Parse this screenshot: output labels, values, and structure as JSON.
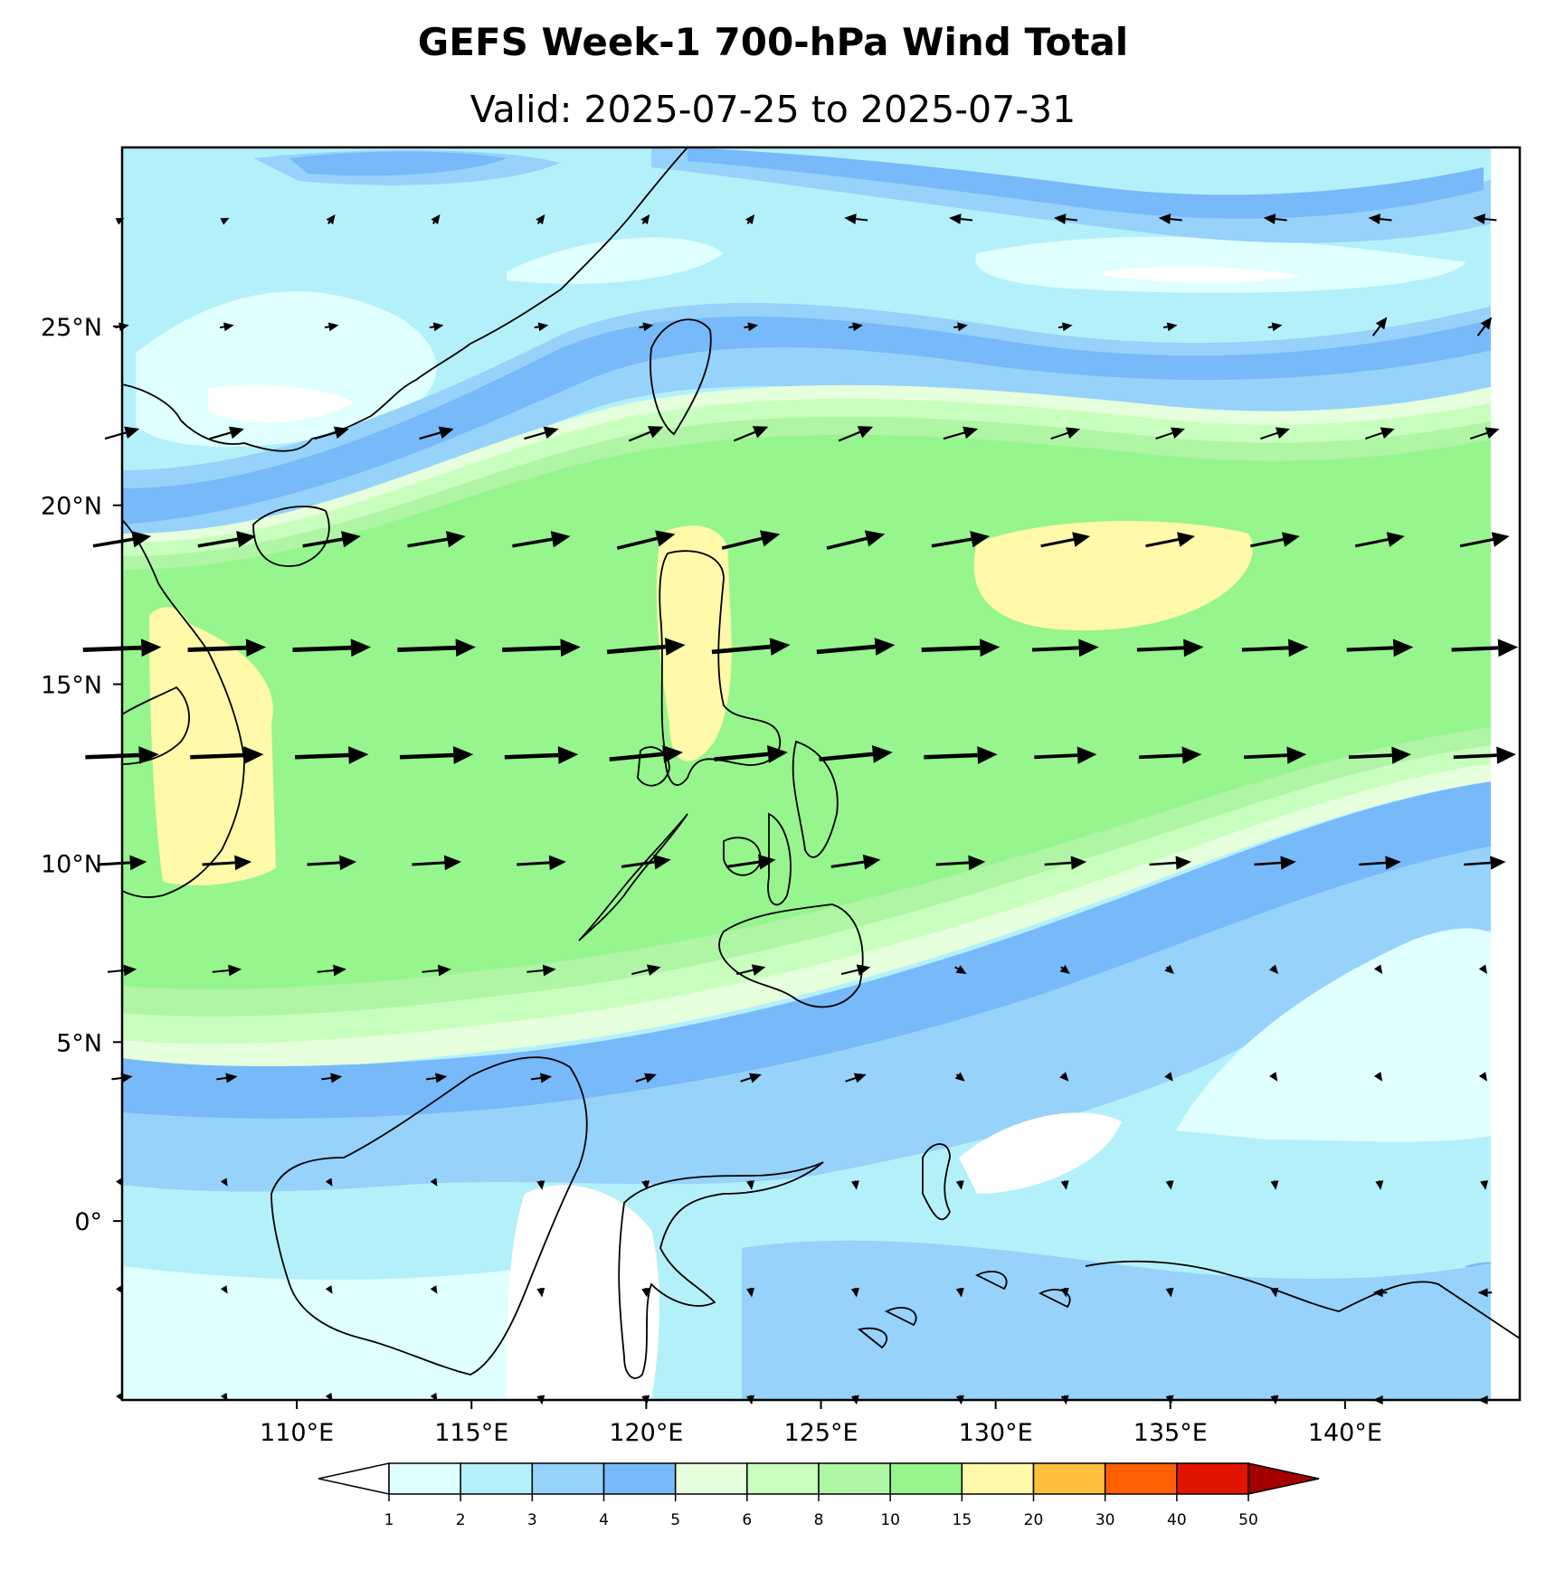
{
  "title": "GEFS Week-1 700-hPa Wind Total",
  "subtitle": "Valid: 2025-07-25 to 2025-07-31",
  "map": {
    "lon_range": [
      105.0,
      145.0
    ],
    "lat_range": [
      -5.0,
      30.0
    ],
    "lon_ticks": [
      {
        "value": 110,
        "label": "110°E"
      },
      {
        "value": 115,
        "label": "115°E"
      },
      {
        "value": 120,
        "label": "120°E"
      },
      {
        "value": 125,
        "label": "125°E"
      },
      {
        "value": 130,
        "label": "130°E"
      },
      {
        "value": 135,
        "label": "135°E"
      },
      {
        "value": 140,
        "label": "140°E"
      }
    ],
    "lat_ticks": [
      {
        "value": 0,
        "label": "0°"
      },
      {
        "value": 5,
        "label": "5°N"
      },
      {
        "value": 10,
        "label": "10°N"
      },
      {
        "value": 15,
        "label": "15°N"
      },
      {
        "value": 20,
        "label": "20°N"
      },
      {
        "value": 25,
        "label": "25°N"
      }
    ],
    "regions": [
      "Philippines",
      "Taiwan",
      "Hainan",
      "Borneo",
      "Sulawesi",
      "Halmahera",
      "New Guinea",
      "Vietnam"
    ]
  },
  "colorbar": {
    "levels": [
      "1",
      "2",
      "3",
      "4",
      "5",
      "6",
      "8",
      "10",
      "15",
      "20",
      "30",
      "40",
      "50"
    ],
    "colors": [
      "#e0ffff",
      "#b4f0fa",
      "#96d2fa",
      "#78b9fa",
      "#e6ffdc",
      "#c8ffbe",
      "#aff5a5",
      "#96f58c",
      "#fffaaa",
      "#ffc03c",
      "#ff6000",
      "#e11400",
      "#a50000"
    ],
    "under_color": "#ffffff",
    "over_color": "#a50000"
  },
  "colors": {
    "speed_1_2": "#e0ffff",
    "speed_2_3": "#b4f0fa",
    "speed_3_4": "#96d2fa",
    "speed_4_5": "#78b9fa",
    "speed_5_6": "#e6ffdc",
    "speed_6_8": "#c8ffbe",
    "speed_8_10": "#aff5a5",
    "speed_10_15": "#96f58c",
    "speed_15_20": "#fffaaa"
  }
}
